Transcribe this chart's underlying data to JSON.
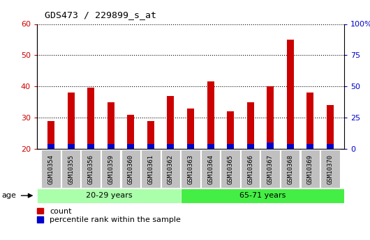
{
  "title": "GDS473 / 229899_s_at",
  "samples": [
    "GSM10354",
    "GSM10355",
    "GSM10356",
    "GSM10359",
    "GSM10360",
    "GSM10361",
    "GSM10362",
    "GSM10363",
    "GSM10364",
    "GSM10365",
    "GSM10366",
    "GSM10367",
    "GSM10368",
    "GSM10369",
    "GSM10370"
  ],
  "count_values": [
    29,
    38,
    39.5,
    35,
    31,
    29,
    37,
    33,
    41.5,
    32,
    35,
    40,
    55,
    38,
    34
  ],
  "percentile_values": [
    1.5,
    1.5,
    1.5,
    1.5,
    1.5,
    1.5,
    1.5,
    1.5,
    1.5,
    1.5,
    1.5,
    2.0,
    1.5,
    1.5,
    1.5
  ],
  "bar_bottom": 20,
  "ylim_left": [
    20,
    60
  ],
  "ylim_right": [
    0,
    100
  ],
  "yticks_left": [
    20,
    30,
    40,
    50,
    60
  ],
  "yticks_right": [
    0,
    25,
    50,
    75,
    100
  ],
  "ytick_labels_right": [
    "0",
    "25",
    "50",
    "75",
    "100%"
  ],
  "group1_samples": 7,
  "group2_samples": 8,
  "group1_label": "20-29 years",
  "group2_label": "65-71 years",
  "age_label": "age",
  "legend_count_label": "count",
  "legend_percentile_label": "percentile rank within the sample",
  "count_color": "#cc0000",
  "percentile_color": "#0000cc",
  "plot_bg_color": "#ffffff",
  "tick_bg_color": "#c0c0c0",
  "group1_color": "#aaffaa",
  "group2_color": "#44ee44",
  "grid_color": "#000000",
  "bar_width": 0.35
}
